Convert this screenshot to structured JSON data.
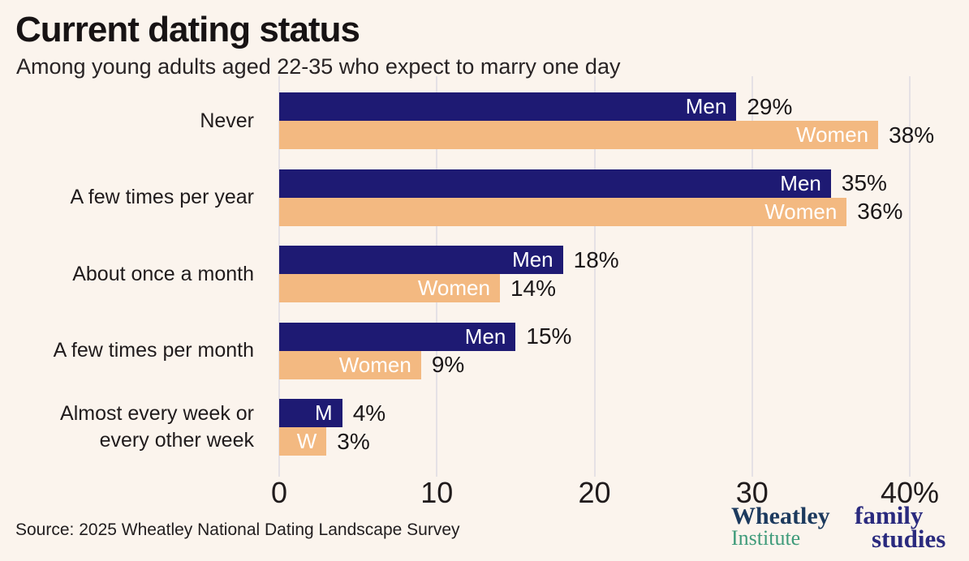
{
  "header": {
    "title": "Current dating status",
    "subtitle": "Among young adults aged 22-35 who expect to marry one day"
  },
  "chart_data": {
    "type": "bar",
    "orientation": "horizontal",
    "title": "Current dating status",
    "subtitle": "Among young adults aged 22-35 who expect to marry one day",
    "categories": [
      "Never",
      "A few times per year",
      "About once a month",
      "A few times per month",
      "Almost every week or\nevery other week"
    ],
    "series": [
      {
        "name": "Men",
        "color": "#1e1a73",
        "label_color": "#ffffff",
        "values": [
          29,
          35,
          18,
          15,
          4
        ],
        "bar_labels": [
          "Men",
          "Men",
          "Men",
          "Men",
          "M"
        ]
      },
      {
        "name": "Women",
        "color": "#f3b981",
        "label_color": "#ffffff",
        "values": [
          38,
          36,
          14,
          9,
          3
        ],
        "bar_labels": [
          "Women",
          "Women",
          "Women",
          "Women",
          "W"
        ]
      }
    ],
    "value_suffix": "%",
    "xlim": [
      0,
      40
    ],
    "x_ticks": [
      0,
      10,
      20,
      30,
      40
    ],
    "x_tick_labels": [
      "0",
      "10",
      "20",
      "30",
      "40%"
    ],
    "grid": true,
    "legend": "labels-inside-bars"
  },
  "footer": {
    "source": "Source: 2025 Wheatley National Dating Landscape Survey"
  },
  "logos": {
    "wheatley": {
      "line1": "Wheatley",
      "line2": "Institute"
    },
    "family_studies": {
      "line1": "family",
      "line2": "studies"
    }
  },
  "colors": {
    "background": "#fbf4ed",
    "men_bar": "#1e1a73",
    "women_bar": "#f3b981",
    "gridline": "#e5e1e5",
    "text": "#1a1617",
    "wheatley_navy": "#1c3a5e",
    "institute_green": "#3f9b7a",
    "family_navy": "#2a2a7e"
  }
}
